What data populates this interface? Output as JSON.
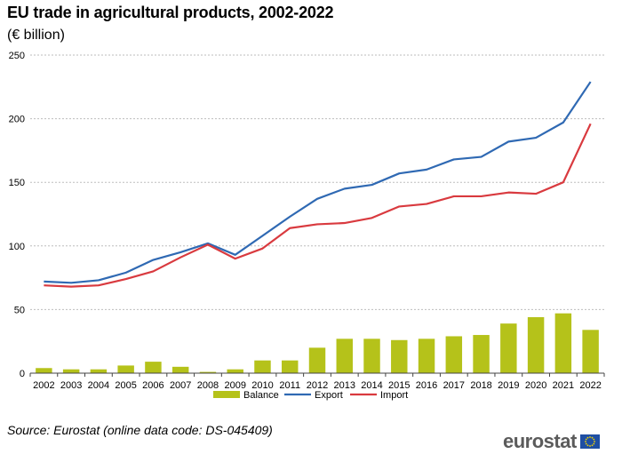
{
  "title": "EU trade in agricultural products, 2002-2022",
  "subtitle": "(€ billion)",
  "source": "Source: Eurostat (online data code: DS-045409)",
  "logo_text": "eurostat",
  "colors": {
    "balance": "#b5c21a",
    "export": "#2f69b3",
    "import": "#d93a3f",
    "grid": "#bdbdbd",
    "axis": "#444444"
  },
  "chart_data": {
    "type": "bar+line",
    "categories": [
      "2002",
      "2003",
      "2004",
      "2005",
      "2006",
      "2007",
      "2008",
      "2009",
      "2010",
      "2011",
      "2012",
      "2013",
      "2014",
      "2015",
      "2016",
      "2017",
      "2018",
      "2019",
      "2020",
      "2021",
      "2022"
    ],
    "ylim": [
      0,
      250
    ],
    "yticks": [
      0,
      50,
      100,
      150,
      200,
      250
    ],
    "grid": true,
    "legend_position": "bottom",
    "series": [
      {
        "name": "Balance",
        "type": "bar",
        "values": [
          4,
          3,
          3,
          6,
          9,
          5,
          1,
          3,
          10,
          10,
          20,
          27,
          27,
          26,
          27,
          29,
          30,
          39,
          44,
          47,
          34
        ]
      },
      {
        "name": "Export",
        "type": "line",
        "values": [
          72,
          71,
          73,
          79,
          89,
          95,
          102,
          93,
          108,
          123,
          137,
          145,
          148,
          157,
          160,
          168,
          170,
          182,
          185,
          197,
          229
        ]
      },
      {
        "name": "Import",
        "type": "line",
        "values": [
          69,
          68,
          69,
          74,
          80,
          91,
          101,
          90,
          98,
          114,
          117,
          118,
          122,
          131,
          133,
          139,
          139,
          142,
          141,
          150,
          196
        ]
      }
    ]
  }
}
